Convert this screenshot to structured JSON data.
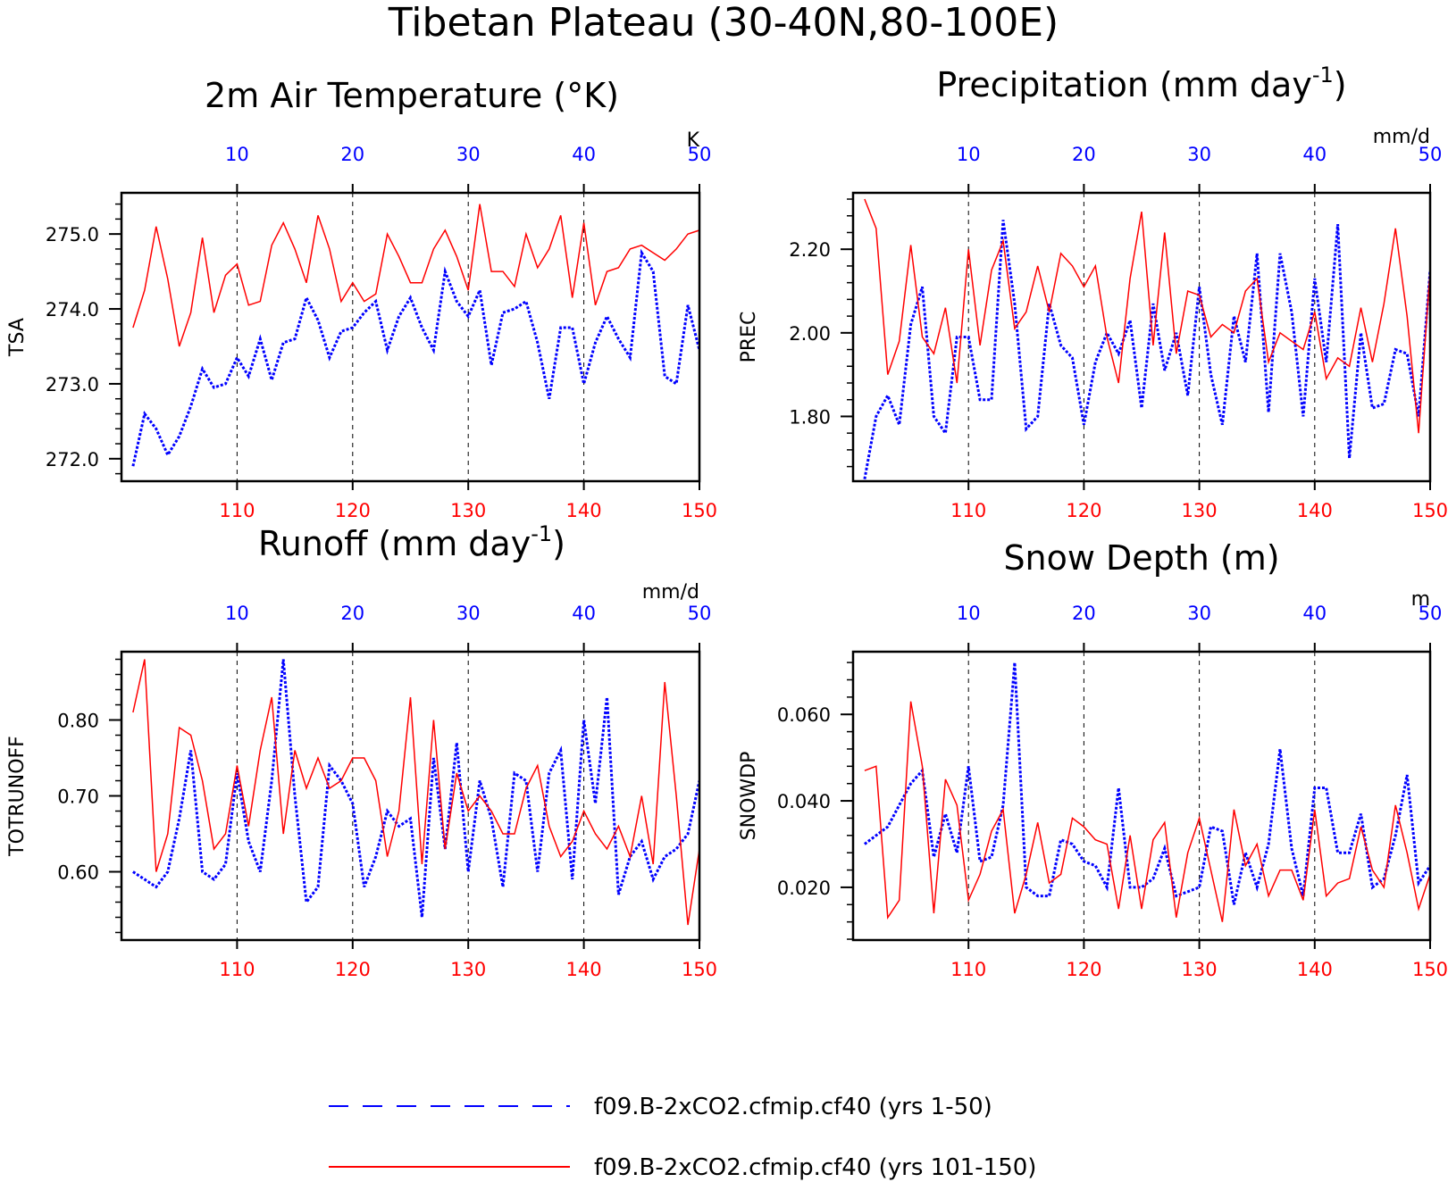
{
  "figure": {
    "title": "Tibetan Plateau (30-40N,80-100E)",
    "colors": {
      "blue": "#0000ff",
      "red": "#ff0000",
      "axis": "#000000"
    }
  },
  "legend": {
    "blue_label": "f09.B-2xCO2.cfmip.cf40 (yrs 1-50)",
    "red_label": "f09.B-2xCO2.cfmip.cf40 (yrs 101-150)"
  },
  "chart_data": [
    {
      "type": "line",
      "title": "2m Air Temperature (°K)",
      "ylabel": "TSA",
      "units": "K",
      "ylim": [
        271.7,
        275.55
      ],
      "yticks": [
        272.0,
        273.0,
        274.0,
        275.0
      ],
      "ytick_labels": [
        "272.0",
        "273.0",
        "274.0",
        "275.0"
      ],
      "x_top": {
        "range": [
          1,
          50
        ],
        "ticks": [
          10,
          20,
          30,
          40,
          50
        ],
        "tick_labels": [
          "10",
          "20",
          "30",
          "40",
          "50"
        ]
      },
      "x_bottom": {
        "range": [
          101,
          150
        ],
        "ticks": [
          110,
          120,
          130,
          140,
          150
        ],
        "tick_labels": [
          "110",
          "120",
          "130",
          "140",
          "150"
        ]
      },
      "grid": "dashed vertical at major x ticks",
      "series": [
        {
          "color": "#0000ff",
          "style": "dotted",
          "x_axis": "top",
          "values": [
            271.9,
            272.6,
            272.4,
            272.05,
            272.3,
            272.7,
            273.2,
            272.95,
            273.0,
            273.35,
            273.1,
            273.6,
            273.05,
            273.55,
            273.6,
            274.15,
            273.85,
            273.35,
            273.7,
            273.75,
            273.95,
            274.1,
            273.45,
            273.9,
            274.15,
            273.75,
            273.45,
            274.5,
            274.1,
            273.9,
            274.25,
            273.25,
            273.95,
            274.0,
            274.1,
            273.55,
            272.8,
            273.75,
            273.75,
            273.0,
            273.55,
            273.9,
            273.6,
            273.35,
            274.75,
            274.5,
            273.1,
            273.0,
            274.05,
            273.45
          ]
        },
        {
          "color": "#ff0000",
          "style": "solid",
          "x_axis": "bottom",
          "values": [
            273.75,
            274.25,
            275.1,
            274.4,
            273.5,
            273.95,
            274.95,
            273.95,
            274.45,
            274.6,
            274.05,
            274.1,
            274.85,
            275.15,
            274.8,
            274.35,
            275.25,
            274.8,
            274.1,
            274.35,
            274.1,
            274.2,
            275.0,
            274.7,
            274.35,
            274.35,
            274.8,
            275.05,
            274.7,
            274.25,
            275.4,
            274.5,
            274.5,
            274.3,
            275.0,
            274.55,
            274.8,
            275.25,
            274.15,
            275.15,
            274.05,
            274.5,
            274.55,
            274.8,
            274.85,
            274.75,
            274.65,
            274.8,
            275.0,
            275.05
          ]
        }
      ]
    },
    {
      "type": "line",
      "title": "Precipitation (mm day",
      "title_sup": "-1",
      "title_tail": ")",
      "ylabel": "PREC",
      "units": "mm/d",
      "ylim": [
        1.645,
        2.335
      ],
      "yticks": [
        1.8,
        2.0,
        2.2
      ],
      "ytick_labels": [
        "1.80",
        "2.00",
        "2.20"
      ],
      "x_top": {
        "range": [
          1,
          50
        ],
        "ticks": [
          10,
          20,
          30,
          40,
          50
        ],
        "tick_labels": [
          "10",
          "20",
          "30",
          "40",
          "50"
        ]
      },
      "x_bottom": {
        "range": [
          101,
          150
        ],
        "ticks": [
          110,
          120,
          130,
          140,
          150
        ],
        "tick_labels": [
          "110",
          "120",
          "130",
          "140",
          "150"
        ]
      },
      "grid": "dashed vertical at major x ticks",
      "series": [
        {
          "color": "#0000ff",
          "style": "dotted",
          "x_axis": "top",
          "values": [
            1.65,
            1.8,
            1.85,
            1.78,
            2.02,
            2.11,
            1.8,
            1.76,
            1.99,
            1.99,
            1.84,
            1.84,
            2.27,
            2.07,
            1.77,
            1.8,
            2.07,
            1.97,
            1.94,
            1.78,
            1.93,
            2.0,
            1.95,
            2.03,
            1.82,
            2.07,
            1.91,
            2.0,
            1.85,
            2.11,
            1.9,
            1.78,
            2.04,
            1.93,
            2.19,
            1.81,
            2.19,
            2.05,
            1.8,
            2.13,
            1.93,
            2.26,
            1.7,
            2.0,
            1.82,
            1.83,
            1.96,
            1.95,
            1.8,
            2.15
          ]
        },
        {
          "color": "#ff0000",
          "style": "solid",
          "x_axis": "bottom",
          "values": [
            2.32,
            2.25,
            1.9,
            1.98,
            2.21,
            1.99,
            1.95,
            2.06,
            1.88,
            2.2,
            1.97,
            2.15,
            2.22,
            2.01,
            2.05,
            2.16,
            2.05,
            2.19,
            2.16,
            2.11,
            2.16,
            1.99,
            1.88,
            2.13,
            2.29,
            1.97,
            2.24,
            1.95,
            2.1,
            2.09,
            1.99,
            2.02,
            2.0,
            2.1,
            2.13,
            1.93,
            2.0,
            1.98,
            1.96,
            2.05,
            1.89,
            1.94,
            1.92,
            2.06,
            1.93,
            2.07,
            2.25,
            2.04,
            1.76,
            2.15
          ]
        }
      ]
    },
    {
      "type": "line",
      "title": "Runoff (mm day",
      "title_sup": "-1",
      "title_tail": ")",
      "ylabel": "TOTRUNOFF",
      "units": "mm/d",
      "ylim": [
        0.51,
        0.89
      ],
      "yticks": [
        0.6,
        0.7,
        0.8
      ],
      "ytick_labels": [
        "0.60",
        "0.70",
        "0.80"
      ],
      "x_top": {
        "range": [
          1,
          50
        ],
        "ticks": [
          10,
          20,
          30,
          40,
          50
        ],
        "tick_labels": [
          "10",
          "20",
          "30",
          "40",
          "50"
        ]
      },
      "x_bottom": {
        "range": [
          101,
          150
        ],
        "ticks": [
          110,
          120,
          130,
          140,
          150
        ],
        "tick_labels": [
          "110",
          "120",
          "130",
          "140",
          "150"
        ]
      },
      "grid": "dashed vertical at major x ticks",
      "series": [
        {
          "color": "#0000ff",
          "style": "dotted",
          "x_axis": "top",
          "values": [
            0.6,
            0.59,
            0.58,
            0.6,
            0.67,
            0.76,
            0.6,
            0.59,
            0.61,
            0.73,
            0.64,
            0.6,
            0.72,
            0.88,
            0.7,
            0.56,
            0.58,
            0.74,
            0.72,
            0.69,
            0.58,
            0.62,
            0.68,
            0.66,
            0.67,
            0.54,
            0.75,
            0.63,
            0.77,
            0.6,
            0.72,
            0.67,
            0.58,
            0.73,
            0.72,
            0.6,
            0.73,
            0.76,
            0.59,
            0.8,
            0.69,
            0.83,
            0.57,
            0.62,
            0.64,
            0.59,
            0.62,
            0.63,
            0.65,
            0.72
          ]
        },
        {
          "color": "#ff0000",
          "style": "solid",
          "x_axis": "bottom",
          "values": [
            0.81,
            0.88,
            0.6,
            0.65,
            0.79,
            0.78,
            0.72,
            0.63,
            0.65,
            0.74,
            0.66,
            0.76,
            0.83,
            0.65,
            0.76,
            0.71,
            0.75,
            0.71,
            0.72,
            0.75,
            0.75,
            0.72,
            0.62,
            0.68,
            0.83,
            0.61,
            0.8,
            0.63,
            0.73,
            0.68,
            0.7,
            0.68,
            0.65,
            0.65,
            0.71,
            0.74,
            0.66,
            0.62,
            0.64,
            0.68,
            0.65,
            0.63,
            0.66,
            0.62,
            0.7,
            0.61,
            0.85,
            0.7,
            0.53,
            0.63
          ]
        }
      ]
    },
    {
      "type": "line",
      "title": "Snow Depth (m)",
      "ylabel": "SNOWDP",
      "units": "m",
      "ylim": [
        0.0078,
        0.0745
      ],
      "yticks": [
        0.02,
        0.04,
        0.06
      ],
      "ytick_labels": [
        "0.020",
        "0.040",
        "0.060"
      ],
      "x_top": {
        "range": [
          1,
          50
        ],
        "ticks": [
          10,
          20,
          30,
          40,
          50
        ],
        "tick_labels": [
          "10",
          "20",
          "30",
          "40",
          "50"
        ]
      },
      "x_bottom": {
        "range": [
          101,
          150
        ],
        "ticks": [
          110,
          120,
          130,
          140,
          150
        ],
        "tick_labels": [
          "110",
          "120",
          "130",
          "140",
          "150"
        ]
      },
      "grid": "dashed vertical at major x ticks",
      "series": [
        {
          "color": "#0000ff",
          "style": "dotted",
          "x_axis": "top",
          "values": [
            0.03,
            0.032,
            0.034,
            0.039,
            0.044,
            0.047,
            0.027,
            0.037,
            0.028,
            0.048,
            0.026,
            0.027,
            0.039,
            0.072,
            0.02,
            0.018,
            0.018,
            0.031,
            0.03,
            0.026,
            0.025,
            0.02,
            0.043,
            0.02,
            0.02,
            0.022,
            0.029,
            0.018,
            0.019,
            0.02,
            0.034,
            0.033,
            0.016,
            0.028,
            0.02,
            0.03,
            0.052,
            0.029,
            0.018,
            0.043,
            0.043,
            0.028,
            0.028,
            0.037,
            0.02,
            0.022,
            0.032,
            0.046,
            0.021,
            0.025
          ]
        },
        {
          "color": "#ff0000",
          "style": "solid",
          "x_axis": "bottom",
          "values": [
            0.047,
            0.048,
            0.013,
            0.017,
            0.063,
            0.048,
            0.014,
            0.045,
            0.039,
            0.017,
            0.023,
            0.033,
            0.038,
            0.014,
            0.023,
            0.035,
            0.021,
            0.023,
            0.036,
            0.034,
            0.031,
            0.03,
            0.015,
            0.032,
            0.015,
            0.031,
            0.035,
            0.013,
            0.028,
            0.036,
            0.024,
            0.012,
            0.038,
            0.025,
            0.03,
            0.018,
            0.024,
            0.024,
            0.017,
            0.038,
            0.018,
            0.021,
            0.022,
            0.034,
            0.024,
            0.02,
            0.039,
            0.028,
            0.015,
            0.023
          ]
        }
      ]
    }
  ]
}
